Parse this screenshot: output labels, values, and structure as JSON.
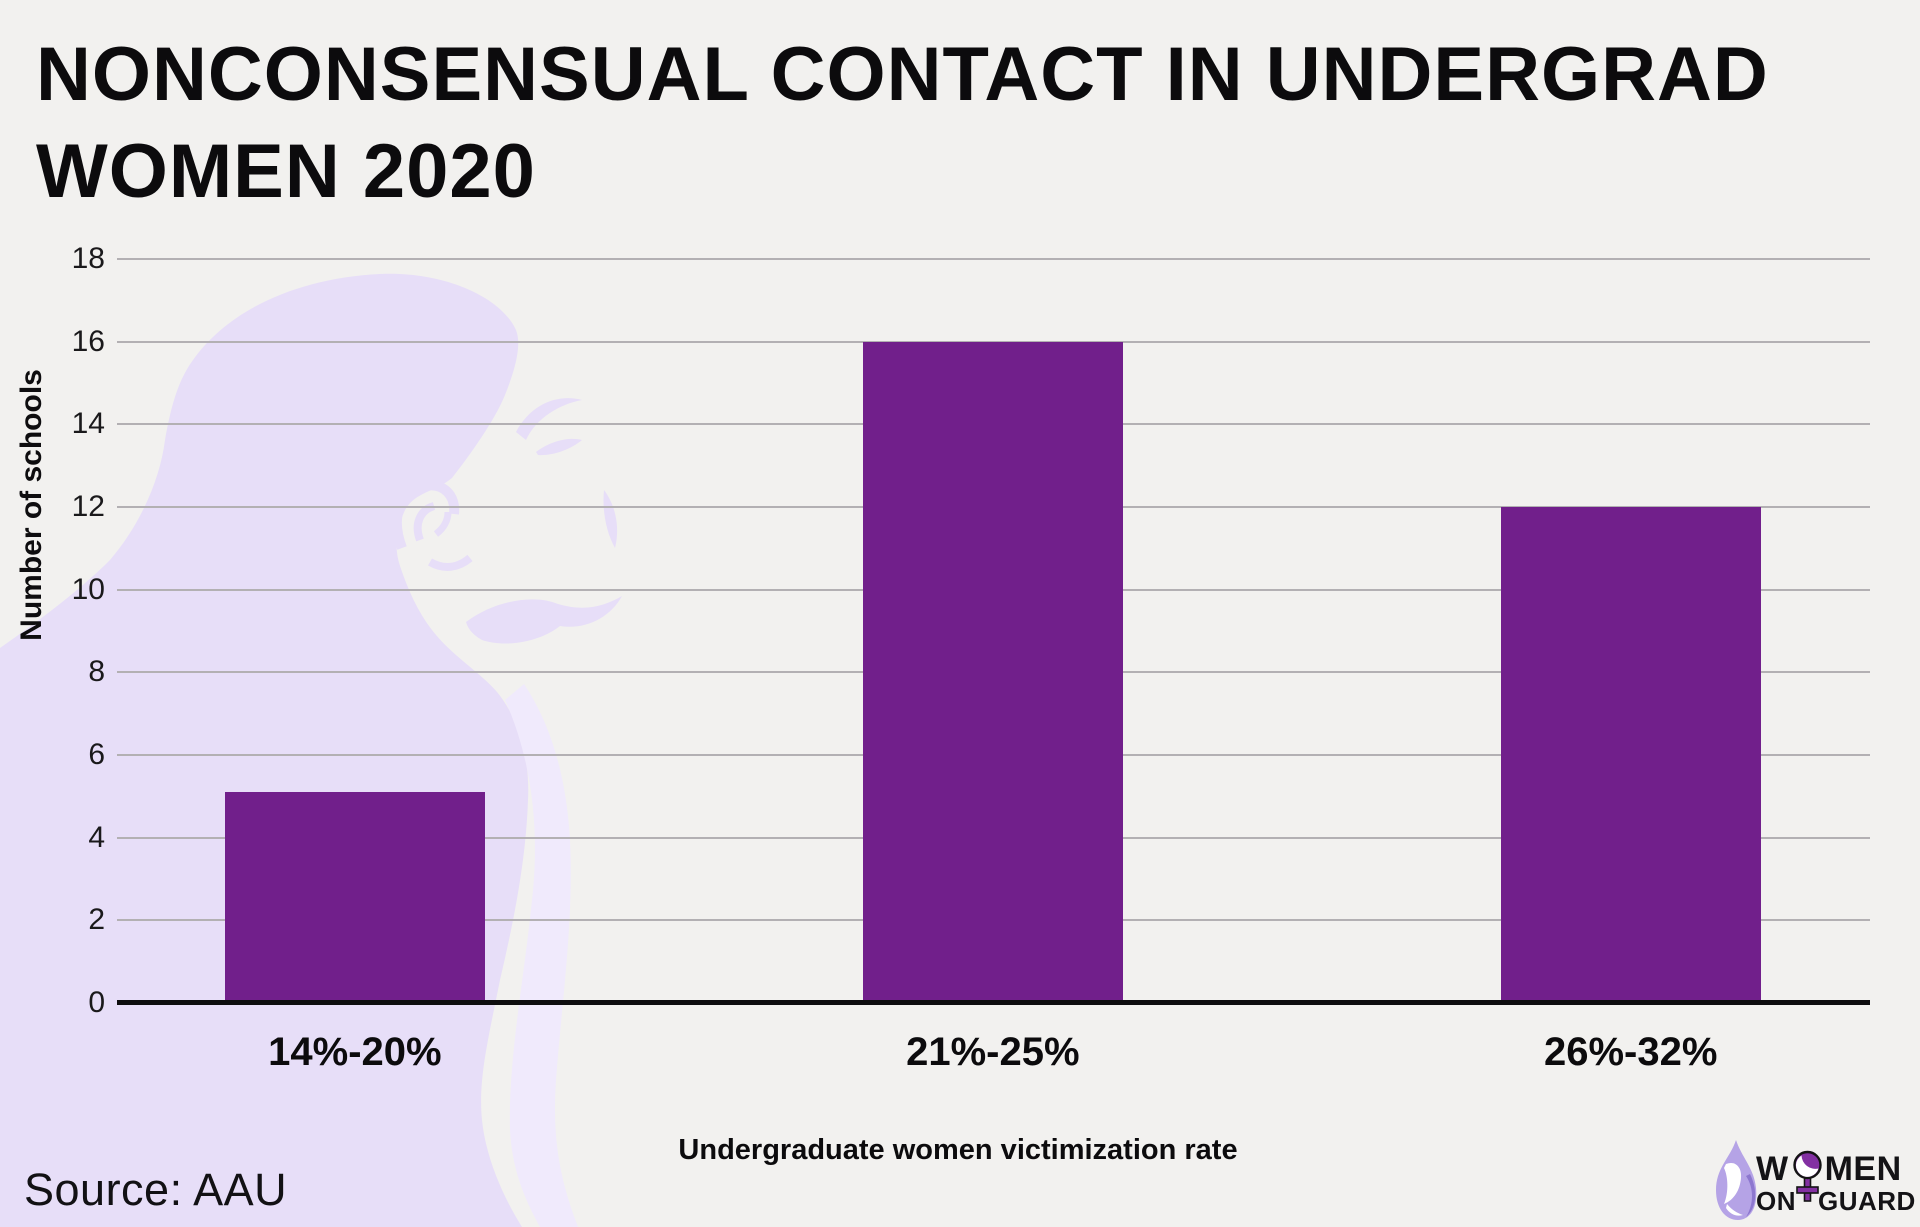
{
  "title_lines": [
    "NONCONSENSUAL CONTACT IN UNDERGRAD",
    "WOMEN 2020"
  ],
  "source_text": "Source: AAU",
  "chart_data": {
    "type": "bar",
    "title": "NONCONSENSUAL CONTACT IN UNDERGRAD WOMEN 2020",
    "categories": [
      "14%-20%",
      "21%-25%",
      "26%-32%"
    ],
    "values": [
      5.1,
      16,
      12
    ],
    "xlabel": "Undergraduate women victimization rate",
    "ylabel": "Number of schools",
    "ylim": [
      0,
      18
    ],
    "ytick_step": 2,
    "yticks": [
      0,
      2,
      4,
      6,
      8,
      10,
      12,
      14,
      16,
      18
    ],
    "grid": true,
    "legend": "none",
    "source": "Source: AAU"
  },
  "logo": {
    "leaf_icon": "woman-profile-leaf-icon",
    "symbol_icon": "female-gender-symbol-icon",
    "word_part_w": "W",
    "word_part_men": "MEN",
    "word_on": "ON",
    "word_guard": "GUARD"
  },
  "colors": {
    "background": "#f2f1ef",
    "silhouette_lavender": "#e7def8",
    "silhouette_light_lavender": "#f0eafc",
    "bar_purple": "#711f8b",
    "gridline_gray": "#b3b0b3",
    "axis_black": "#0e0d0f",
    "text_black": "#0c0b0d",
    "logo_purple": "#8330a2",
    "logo_lavender": "#b5a3e6"
  }
}
